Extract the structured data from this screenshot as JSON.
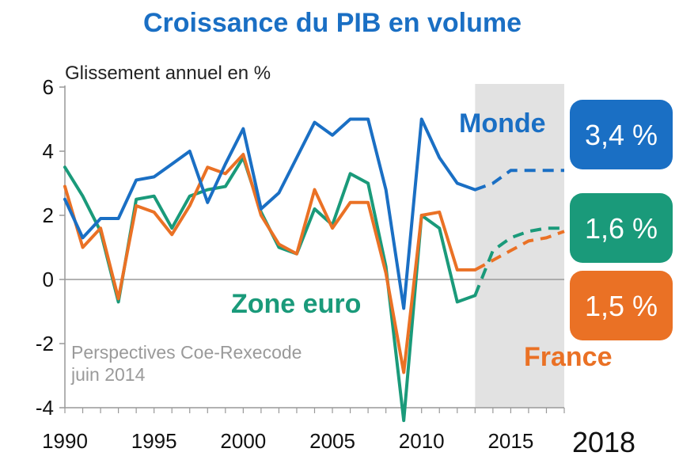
{
  "chart_data": {
    "type": "line",
    "title": "Croissance du PIB en volume",
    "ylabel": "Glissement annuel en %",
    "xlabel": "",
    "xlim": [
      1990,
      2018
    ],
    "ylim": [
      -4,
      6
    ],
    "yticks": [
      "6",
      "4",
      "2",
      "0",
      "-2",
      "-4"
    ],
    "xticks": [
      "1990",
      "1995",
      "2000",
      "2005",
      "2010",
      "2015",
      "2018"
    ],
    "forecast_start": 2013,
    "annotation": "Perspectives Coe-Rexecode",
    "annotation2": "juin 2014",
    "series": [
      {
        "name": "Monde",
        "color": "#1a6fc4",
        "value_label": "3,4 %",
        "x": [
          1990,
          1991,
          1992,
          1993,
          1994,
          1995,
          1996,
          1997,
          1998,
          1999,
          2000,
          2001,
          2002,
          2003,
          2004,
          2005,
          2006,
          2007,
          2008,
          2009,
          2010,
          2011,
          2012,
          2013
        ],
        "values": [
          2.5,
          1.3,
          1.9,
          1.9,
          3.1,
          3.2,
          3.6,
          4.0,
          2.4,
          3.6,
          4.7,
          2.2,
          2.7,
          3.8,
          4.9,
          4.5,
          5.0,
          5.0,
          2.8,
          -0.9,
          5.0,
          3.8,
          3.0,
          2.8
        ],
        "forecast_x": [
          2013,
          2014,
          2015,
          2016,
          2017,
          2018
        ],
        "forecast_values": [
          2.8,
          3.0,
          3.4,
          3.4,
          3.4,
          3.4
        ]
      },
      {
        "name": "Zone euro",
        "color": "#1a9a7a",
        "value_label": "1,6 %",
        "x": [
          1990,
          1991,
          1992,
          1993,
          1994,
          1995,
          1996,
          1997,
          1998,
          1999,
          2000,
          2001,
          2002,
          2003,
          2004,
          2005,
          2006,
          2007,
          2008,
          2009,
          2010,
          2011,
          2012,
          2013
        ],
        "values": [
          3.5,
          2.6,
          1.5,
          -0.7,
          2.5,
          2.6,
          1.6,
          2.6,
          2.8,
          2.9,
          3.8,
          2.1,
          1.0,
          0.8,
          2.2,
          1.7,
          3.3,
          3.0,
          0.4,
          -4.4,
          2.0,
          1.6,
          -0.7,
          -0.5
        ],
        "forecast_x": [
          2013,
          2014,
          2015,
          2016,
          2017,
          2018
        ],
        "forecast_values": [
          -0.5,
          0.9,
          1.3,
          1.5,
          1.6,
          1.6
        ]
      },
      {
        "name": "France",
        "color": "#ea7125",
        "value_label": "1,5 %",
        "x": [
          1990,
          1991,
          1992,
          1993,
          1994,
          1995,
          1996,
          1997,
          1998,
          1999,
          2000,
          2001,
          2002,
          2003,
          2004,
          2005,
          2006,
          2007,
          2008,
          2009,
          2010,
          2011,
          2012,
          2013
        ],
        "values": [
          2.9,
          1.0,
          1.6,
          -0.6,
          2.3,
          2.1,
          1.4,
          2.3,
          3.5,
          3.3,
          3.9,
          2.0,
          1.1,
          0.8,
          2.8,
          1.6,
          2.4,
          2.4,
          0.2,
          -2.9,
          2.0,
          2.1,
          0.3,
          0.3
        ],
        "forecast_x": [
          2013,
          2014,
          2015,
          2016,
          2017,
          2018
        ],
        "forecast_values": [
          0.3,
          0.6,
          0.9,
          1.2,
          1.3,
          1.5
        ]
      }
    ]
  }
}
